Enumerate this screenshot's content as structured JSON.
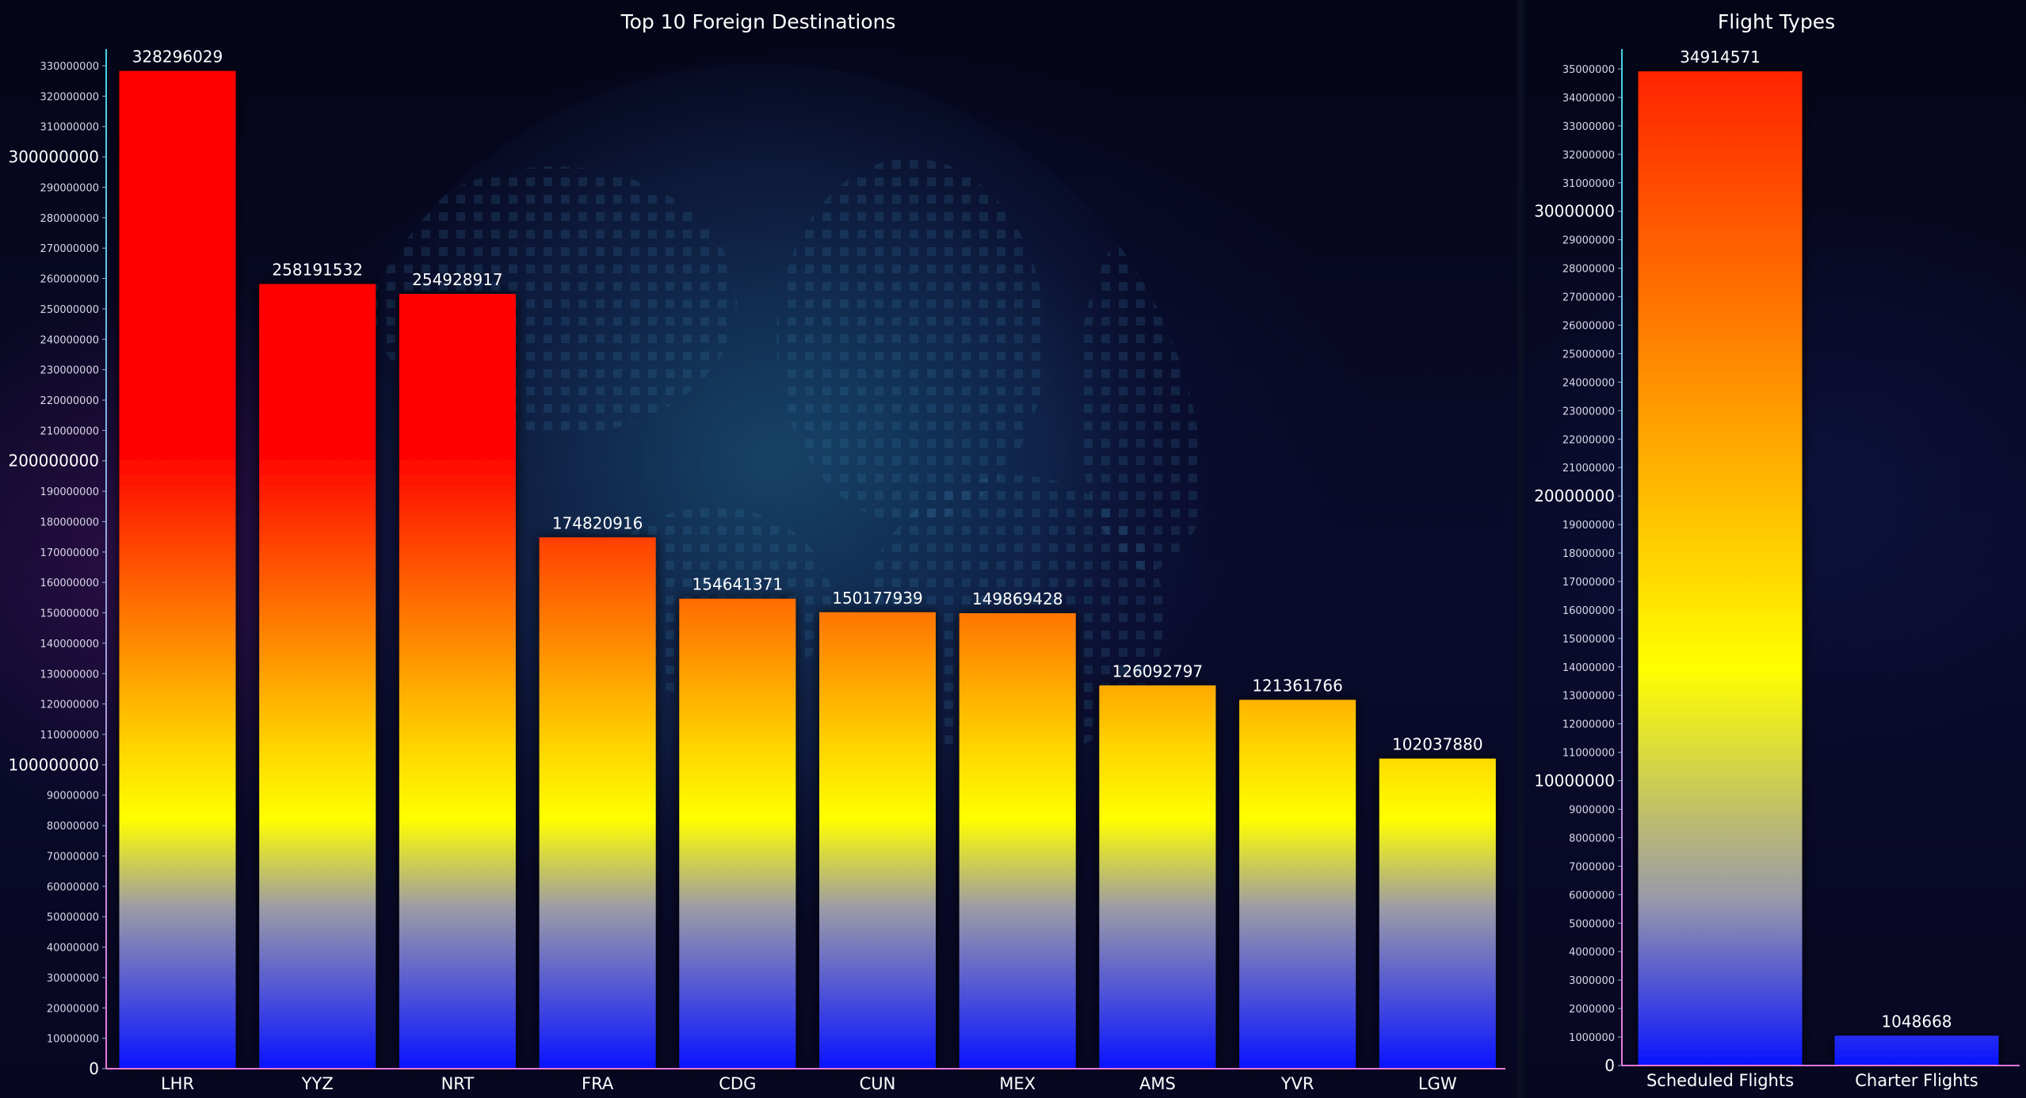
{
  "chart_data": [
    {
      "type": "bar",
      "title": "Top 10 Foreign Destinations",
      "xlabel": "",
      "ylabel": "",
      "categories": [
        "LHR",
        "YYZ",
        "NRT",
        "FRA",
        "CDG",
        "CUN",
        "MEX",
        "AMS",
        "YVR",
        "LGW"
      ],
      "values": [
        328296029,
        258191532,
        254928917,
        174820916,
        154641371,
        150177939,
        149869428,
        126092797,
        121361766,
        102037880
      ],
      "ylim": [
        0,
        330000000
      ],
      "ytick_step": 10000000,
      "ymajor_step": 100000000,
      "grid": false,
      "gradient_colors": [
        "#0a14ff",
        "#9a9aa8",
        "#ffff00",
        "#ff7a00",
        "#ff0000"
      ]
    },
    {
      "type": "bar",
      "title": "Flight Types",
      "xlabel": "",
      "ylabel": "",
      "categories": [
        "Scheduled Flights",
        "Charter Flights"
      ],
      "values": [
        34914571,
        1048668
      ],
      "ylim": [
        0,
        35000000
      ],
      "ytick_step": 1000000,
      "ymajor_step": 10000000,
      "grid": false,
      "gradient_colors": [
        "#0a14ff",
        "#9a9aa8",
        "#ffff00",
        "#ff7a00",
        "#ff0000"
      ]
    }
  ],
  "colors": {
    "axis_gradient_top": "#3fd6e8",
    "axis_gradient_bottom": "#e879d8",
    "background": "#070722"
  }
}
